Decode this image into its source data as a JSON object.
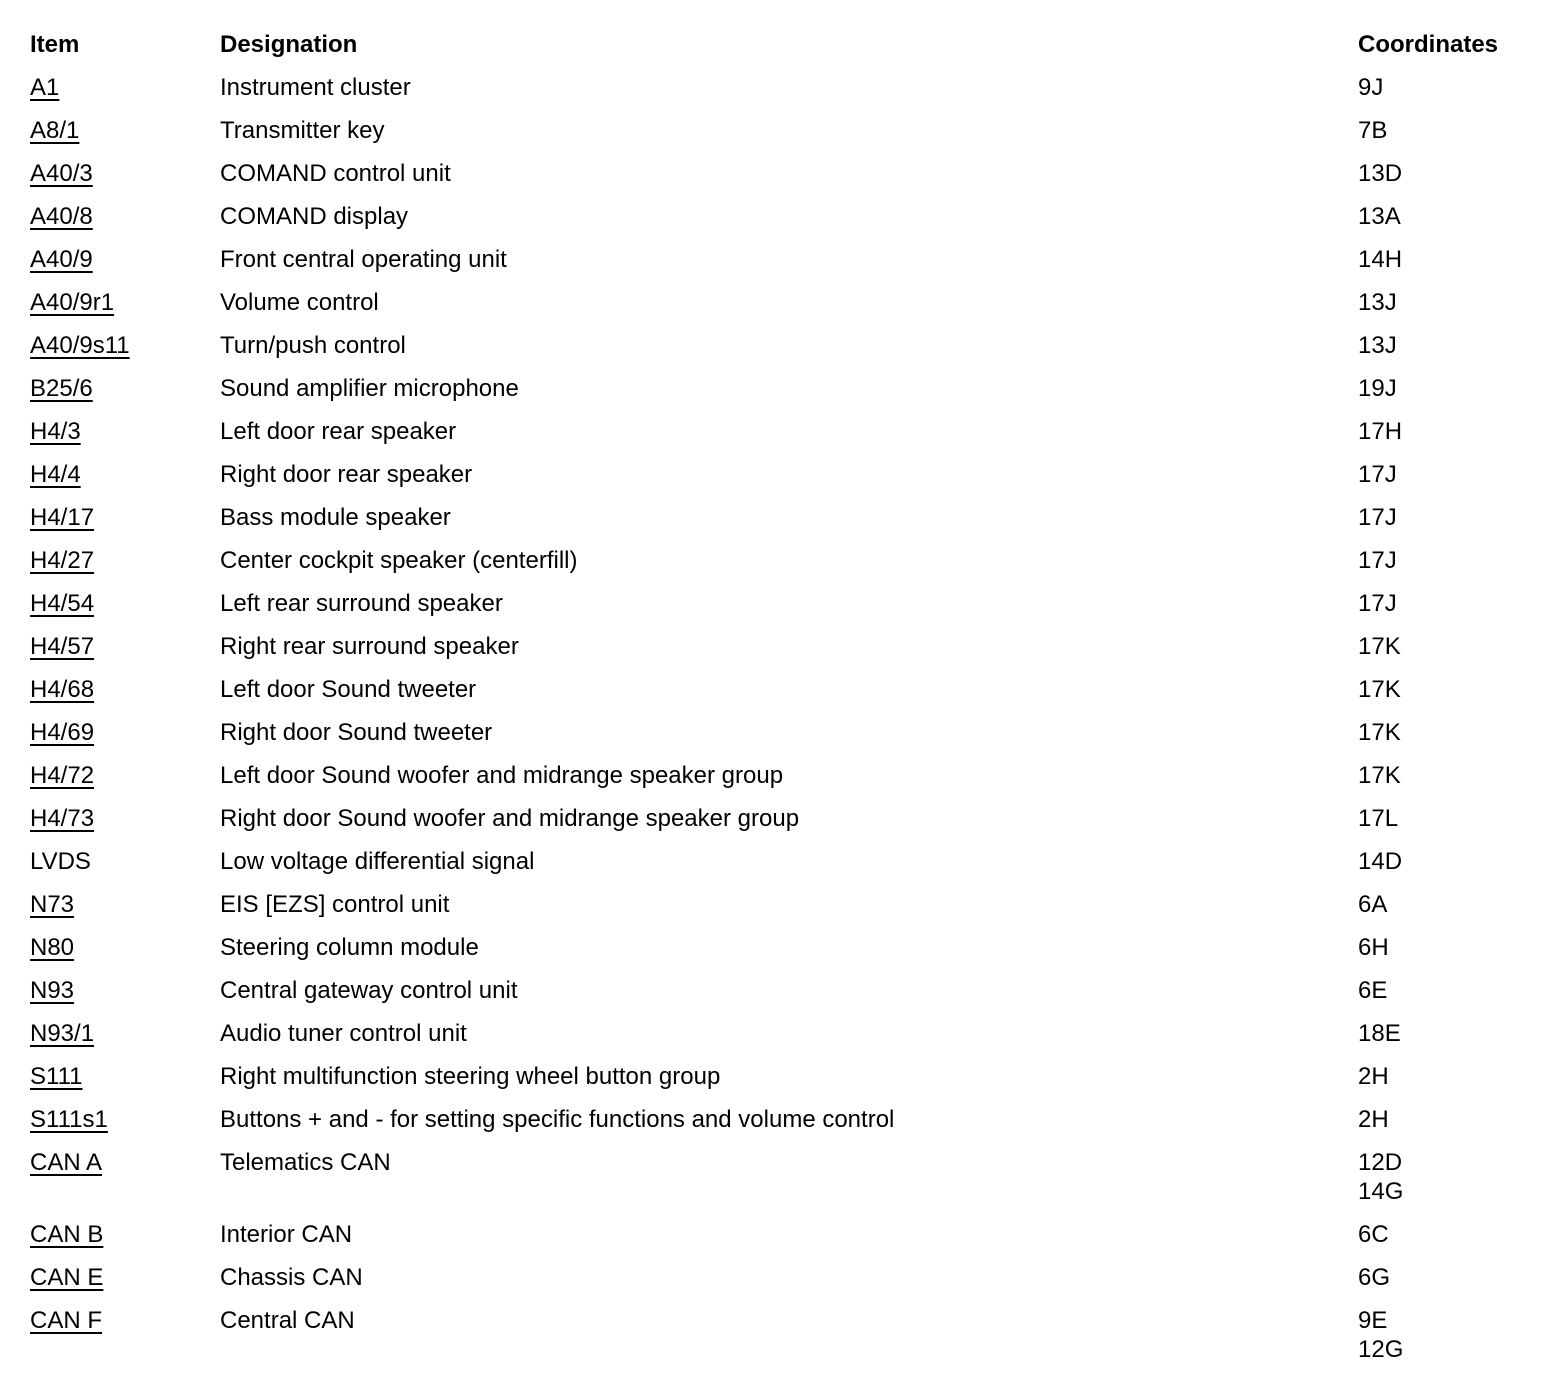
{
  "colors": {
    "text": "#000000",
    "background": "#ffffff"
  },
  "table": {
    "headers": {
      "item": "Item",
      "designation": "Designation",
      "coordinates": "Coordinates"
    },
    "rows": [
      {
        "item": "A1",
        "underlined": true,
        "designation": "Instrument cluster",
        "coordinates": [
          "9J"
        ]
      },
      {
        "item": "A8/1",
        "underlined": true,
        "designation": "Transmitter key",
        "coordinates": [
          "7B"
        ]
      },
      {
        "item": "A40/3",
        "underlined": true,
        "designation": "COMAND control unit",
        "coordinates": [
          "13D"
        ]
      },
      {
        "item": "A40/8",
        "underlined": true,
        "designation": "COMAND display",
        "coordinates": [
          "13A"
        ]
      },
      {
        "item": "A40/9",
        "underlined": true,
        "designation": "Front central operating unit",
        "coordinates": [
          "14H"
        ]
      },
      {
        "item": "A40/9r1",
        "underlined": true,
        "designation": "Volume control",
        "coordinates": [
          "13J"
        ]
      },
      {
        "item": "A40/9s11",
        "underlined": true,
        "designation": "Turn/push control",
        "coordinates": [
          "13J"
        ]
      },
      {
        "item": "B25/6",
        "underlined": true,
        "designation": "Sound amplifier microphone",
        "coordinates": [
          "19J"
        ]
      },
      {
        "item": "H4/3",
        "underlined": true,
        "designation": "Left door rear speaker",
        "coordinates": [
          "17H"
        ]
      },
      {
        "item": "H4/4",
        "underlined": true,
        "designation": "Right door rear speaker",
        "coordinates": [
          "17J"
        ]
      },
      {
        "item": "H4/17",
        "underlined": true,
        "designation": "Bass module speaker",
        "coordinates": [
          "17J"
        ]
      },
      {
        "item": "H4/27",
        "underlined": true,
        "designation": "Center cockpit speaker (centerfill)",
        "coordinates": [
          "17J"
        ]
      },
      {
        "item": "H4/54",
        "underlined": true,
        "designation": "Left rear surround speaker",
        "coordinates": [
          "17J"
        ]
      },
      {
        "item": "H4/57",
        "underlined": true,
        "designation": "Right rear surround speaker",
        "coordinates": [
          "17K"
        ]
      },
      {
        "item": "H4/68",
        "underlined": true,
        "designation": "Left door Sound tweeter",
        "coordinates": [
          "17K"
        ]
      },
      {
        "item": "H4/69",
        "underlined": true,
        "designation": "Right door Sound tweeter",
        "coordinates": [
          "17K"
        ]
      },
      {
        "item": "H4/72",
        "underlined": true,
        "designation": "Left door Sound woofer and midrange speaker group",
        "coordinates": [
          "17K"
        ]
      },
      {
        "item": "H4/73",
        "underlined": true,
        "designation": "Right door Sound woofer and midrange speaker group",
        "coordinates": [
          "17L"
        ]
      },
      {
        "item": "LVDS",
        "underlined": false,
        "designation": "Low voltage differential signal",
        "coordinates": [
          "14D"
        ]
      },
      {
        "item": "N73",
        "underlined": true,
        "designation": "EIS [EZS] control unit",
        "coordinates": [
          "6A"
        ]
      },
      {
        "item": "N80",
        "underlined": true,
        "designation": "Steering column module",
        "coordinates": [
          "6H"
        ]
      },
      {
        "item": "N93",
        "underlined": true,
        "designation": "Central gateway control unit",
        "coordinates": [
          "6E"
        ]
      },
      {
        "item": "N93/1",
        "underlined": true,
        "designation": "Audio tuner control unit",
        "coordinates": [
          "18E"
        ]
      },
      {
        "item": "S111",
        "underlined": true,
        "designation": "Right multifunction steering wheel button group",
        "coordinates": [
          "2H"
        ]
      },
      {
        "item": "S111s1",
        "underlined": true,
        "designation": "Buttons + and - for setting specific functions and volume control",
        "coordinates": [
          "2H"
        ]
      },
      {
        "item": "CAN A",
        "underlined": true,
        "designation": "Telematics CAN",
        "coordinates": [
          "12D",
          "14G"
        ]
      },
      {
        "item": "CAN B",
        "underlined": true,
        "designation": "Interior CAN",
        "coordinates": [
          "6C"
        ]
      },
      {
        "item": "CAN E",
        "underlined": true,
        "designation": "Chassis CAN",
        "coordinates": [
          "6G"
        ]
      },
      {
        "item": "CAN F",
        "underlined": true,
        "designation": "Central CAN",
        "coordinates": [
          "9E",
          "12G"
        ]
      }
    ]
  }
}
